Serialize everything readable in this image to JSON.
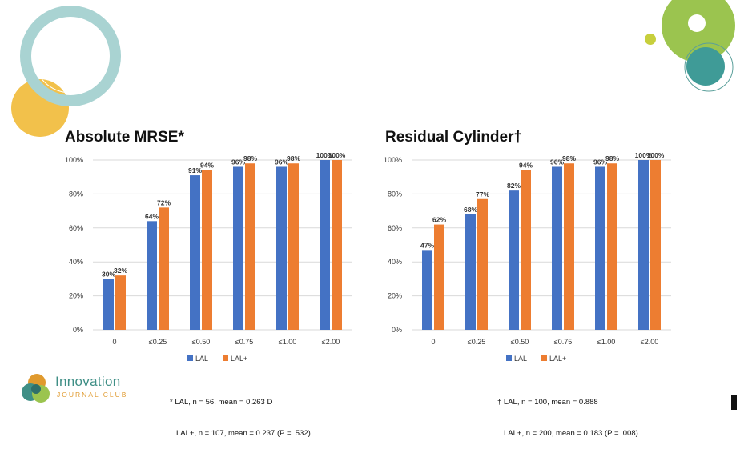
{
  "colors": {
    "lal": "#4472c4",
    "lal_plus": "#ed7d31",
    "grid": "#d9d9d9",
    "teal": "#a9d3d2",
    "yellow": "#f2c14b",
    "green": "#9bc44f",
    "dark_teal": "#3f9b97"
  },
  "logo": {
    "name": "Innovation",
    "sub": "JOURNAL CLUB",
    "icon": "circles-logo-icon"
  },
  "chart_data": [
    {
      "type": "bar",
      "title": "Absolute MRSE*",
      "categories": [
        "0",
        "≤0.25",
        "≤0.50",
        "≤0.75",
        "≤1.00",
        "≤2.00"
      ],
      "series": [
        {
          "name": "LAL",
          "values": [
            30,
            64,
            91,
            96,
            96,
            100
          ]
        },
        {
          "name": "LAL+",
          "values": [
            32,
            72,
            94,
            98,
            98,
            100
          ]
        }
      ],
      "yticks": [
        "0%",
        "20%",
        "40%",
        "60%",
        "80%",
        "100%"
      ],
      "ylim": [
        0,
        100
      ],
      "grid": true,
      "legend": "bottom",
      "footnote": [
        "* LAL, n = 56, mean = 0.263 D",
        "LAL+, n = 107, mean = 0.237 (P = .532)"
      ]
    },
    {
      "type": "bar",
      "title": "Residual Cylinder†",
      "categories": [
        "0",
        "≤0.25",
        "≤0.50",
        "≤0.75",
        "≤1.00",
        "≤2.00"
      ],
      "series": [
        {
          "name": "LAL",
          "values": [
            47,
            68,
            82,
            96,
            96,
            100
          ]
        },
        {
          "name": "LAL+",
          "values": [
            62,
            77,
            94,
            98,
            98,
            100
          ]
        }
      ],
      "yticks": [
        "0%",
        "20%",
        "40%",
        "60%",
        "80%",
        "100%"
      ],
      "ylim": [
        0,
        100
      ],
      "grid": true,
      "legend": "bottom",
      "footnote": [
        "† LAL, n = 100, mean = 0.888",
        "LAL+, n = 200, mean = 0.183 (P = .008)"
      ]
    }
  ]
}
